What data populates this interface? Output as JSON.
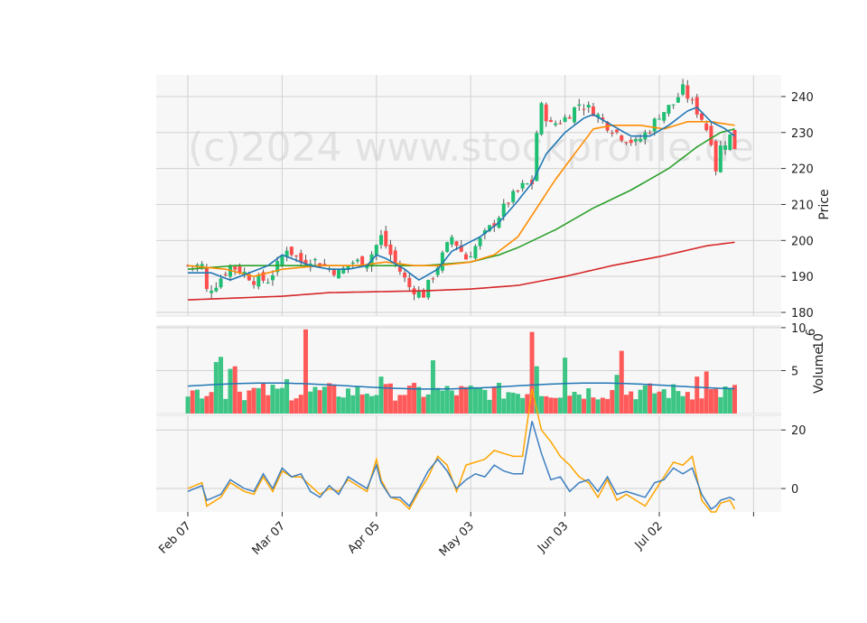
{
  "watermark": "(c)2024 www.stockprofile.de",
  "colors": {
    "panel_bg": "#f7f7f7",
    "grid": "#d2d2d2",
    "up": "#1fbf73",
    "down": "#ff4d4d",
    "vol_up": "#3cc585",
    "vol_down": "#ff5a5a",
    "ma_short": "#1f77b4",
    "ma_mid": "#ff8c00",
    "ma_long": "#2ca02c",
    "ma_200": "#d62728",
    "vol_ma": "#1f77b4",
    "osc_a": "#3d7fc0",
    "osc_b": "#ffa500"
  },
  "chart_data": [
    {
      "type": "candlestick",
      "ylabel": "Price",
      "ylim": [
        179,
        246
      ],
      "yticks": [
        "180",
        "190",
        "200",
        "210",
        "220",
        "230",
        "240"
      ],
      "yticks_values": [
        180,
        190,
        200,
        210,
        220,
        230,
        240
      ],
      "x_tick_labels": [
        "Feb 07",
        "Mar 07",
        "Apr 05",
        "May 03",
        "Jun 03",
        "Jul 02"
      ],
      "x_tick_indices": [
        0,
        20,
        40,
        60,
        80,
        100
      ],
      "n_sessions": 120,
      "anchors_close": [
        [
          0,
          193
        ],
        [
          3,
          193
        ],
        [
          4,
          186
        ],
        [
          6,
          188
        ],
        [
          9,
          193
        ],
        [
          12,
          191
        ],
        [
          14,
          189
        ],
        [
          17,
          189
        ],
        [
          19,
          193
        ],
        [
          21,
          198
        ],
        [
          24,
          194
        ],
        [
          26,
          195
        ],
        [
          29,
          193
        ],
        [
          32,
          191
        ],
        [
          35,
          194
        ],
        [
          38,
          194
        ],
        [
          41,
          201
        ],
        [
          43,
          196
        ],
        [
          47,
          187
        ],
        [
          50,
          185
        ],
        [
          53,
          193
        ],
        [
          56,
          201
        ],
        [
          59,
          195
        ],
        [
          62,
          200
        ],
        [
          65,
          205
        ],
        [
          68,
          211
        ],
        [
          71,
          215
        ],
        [
          73,
          216
        ],
        [
          74,
          230
        ],
        [
          75,
          237
        ],
        [
          77,
          232
        ],
        [
          80,
          234
        ],
        [
          83,
          238
        ],
        [
          86,
          236
        ],
        [
          89,
          232
        ],
        [
          92,
          229
        ],
        [
          95,
          227
        ],
        [
          98,
          231
        ],
        [
          100,
          235
        ],
        [
          103,
          238
        ],
        [
          105,
          242
        ],
        [
          107,
          238
        ],
        [
          109,
          234
        ],
        [
          111,
          228
        ],
        [
          112,
          220
        ],
        [
          113,
          226
        ],
        [
          115,
          229
        ],
        [
          116,
          226
        ]
      ],
      "ma_short_anchors": [
        [
          0,
          191
        ],
        [
          5,
          191
        ],
        [
          9,
          189
        ],
        [
          13,
          191
        ],
        [
          17,
          193
        ],
        [
          20,
          196
        ],
        [
          22,
          195
        ],
        [
          26,
          193
        ],
        [
          30,
          192
        ],
        [
          34,
          192
        ],
        [
          38,
          193
        ],
        [
          40,
          196
        ],
        [
          42,
          195
        ],
        [
          46,
          192
        ],
        [
          49,
          189
        ],
        [
          53,
          192
        ],
        [
          56,
          197
        ],
        [
          59,
          199
        ],
        [
          62,
          201
        ],
        [
          66,
          205
        ],
        [
          70,
          211
        ],
        [
          73,
          216
        ],
        [
          76,
          224
        ],
        [
          80,
          230
        ],
        [
          84,
          234
        ],
        [
          86,
          235
        ],
        [
          90,
          232
        ],
        [
          94,
          229
        ],
        [
          98,
          229
        ],
        [
          102,
          232
        ],
        [
          106,
          236
        ],
        [
          108,
          237
        ],
        [
          111,
          233
        ],
        [
          114,
          231
        ],
        [
          116,
          229
        ]
      ],
      "ma_mid_anchors": [
        [
          0,
          193
        ],
        [
          8,
          192
        ],
        [
          14,
          190
        ],
        [
          20,
          192
        ],
        [
          28,
          193
        ],
        [
          36,
          193
        ],
        [
          42,
          194
        ],
        [
          48,
          193
        ],
        [
          53,
          193
        ],
        [
          60,
          194
        ],
        [
          65,
          196
        ],
        [
          70,
          201
        ],
        [
          74,
          209
        ],
        [
          78,
          217
        ],
        [
          82,
          224
        ],
        [
          86,
          231
        ],
        [
          90,
          232
        ],
        [
          96,
          232
        ],
        [
          101,
          231
        ],
        [
          106,
          233
        ],
        [
          111,
          233
        ],
        [
          116,
          232
        ]
      ],
      "ma_long_anchors": [
        [
          0,
          192
        ],
        [
          10,
          193
        ],
        [
          20,
          193
        ],
        [
          30,
          193
        ],
        [
          40,
          193
        ],
        [
          50,
          193
        ],
        [
          60,
          194
        ],
        [
          66,
          196
        ],
        [
          70,
          198
        ],
        [
          78,
          203
        ],
        [
          86,
          209
        ],
        [
          94,
          214
        ],
        [
          102,
          220
        ],
        [
          108,
          226
        ],
        [
          113,
          230
        ],
        [
          116,
          231
        ]
      ],
      "ma_200_anchors": [
        [
          0,
          183.5
        ],
        [
          20,
          184.5
        ],
        [
          30,
          185.5
        ],
        [
          50,
          186
        ],
        [
          60,
          186.5
        ],
        [
          70,
          187.5
        ],
        [
          80,
          190
        ],
        [
          90,
          193
        ],
        [
          100,
          195.5
        ],
        [
          110,
          198.5
        ],
        [
          116,
          199.5
        ]
      ]
    },
    {
      "type": "bar",
      "name": "volume",
      "ylabel": "Volume",
      "ylabel_multiplier": "10",
      "ylabel_exponent": "6",
      "ylim": [
        0,
        10.2
      ],
      "yticks": [
        "5",
        "10"
      ],
      "yticks_values": [
        5,
        10
      ],
      "spike_values": [
        [
          6,
          6
        ],
        [
          7,
          6.6
        ],
        [
          9,
          5.2
        ],
        [
          10,
          5.5
        ],
        [
          21,
          4
        ],
        [
          25,
          9.8
        ],
        [
          41,
          4.3
        ],
        [
          52,
          6.2
        ],
        [
          73,
          9.5
        ],
        [
          74,
          5.5
        ],
        [
          80,
          6.5
        ],
        [
          92,
          7.3
        ],
        [
          91,
          4.5
        ],
        [
          108,
          4.3
        ],
        [
          110,
          4.9
        ]
      ],
      "base_range": [
        1.5,
        3.6
      ],
      "ma_level": 3.2
    },
    {
      "type": "line",
      "name": "oscillator",
      "ylim": [
        -8,
        25
      ],
      "yticks": [
        "0",
        "20"
      ],
      "yticks_values": [
        0,
        20
      ],
      "series_a_anchors": [
        [
          0,
          -1
        ],
        [
          3,
          1
        ],
        [
          4,
          -4
        ],
        [
          7,
          -2
        ],
        [
          9,
          3
        ],
        [
          12,
          0
        ],
        [
          14,
          -1
        ],
        [
          16,
          5
        ],
        [
          18,
          0
        ],
        [
          20,
          7
        ],
        [
          22,
          4
        ],
        [
          24,
          5
        ],
        [
          26,
          -1
        ],
        [
          28,
          -3
        ],
        [
          30,
          1
        ],
        [
          32,
          -2
        ],
        [
          34,
          4
        ],
        [
          36,
          2
        ],
        [
          38,
          0
        ],
        [
          40,
          8
        ],
        [
          41,
          2
        ],
        [
          43,
          -3
        ],
        [
          45,
          -3
        ],
        [
          47,
          -6
        ],
        [
          49,
          0
        ],
        [
          51,
          6
        ],
        [
          53,
          10
        ],
        [
          55,
          6
        ],
        [
          57,
          0
        ],
        [
          59,
          3
        ],
        [
          61,
          5
        ],
        [
          63,
          4
        ],
        [
          65,
          8
        ],
        [
          67,
          6
        ],
        [
          69,
          5
        ],
        [
          71,
          5
        ],
        [
          73,
          23
        ],
        [
          75,
          12
        ],
        [
          77,
          3
        ],
        [
          79,
          4
        ],
        [
          81,
          -1
        ],
        [
          83,
          2
        ],
        [
          85,
          3
        ],
        [
          87,
          -1
        ],
        [
          89,
          4
        ],
        [
          91,
          -2
        ],
        [
          93,
          -1
        ],
        [
          95,
          -2
        ],
        [
          97,
          -3
        ],
        [
          99,
          2
        ],
        [
          101,
          3
        ],
        [
          103,
          7
        ],
        [
          105,
          5
        ],
        [
          107,
          7
        ],
        [
          109,
          -2
        ],
        [
          111,
          -7
        ],
        [
          112,
          -6
        ],
        [
          113,
          -4
        ],
        [
          115,
          -3
        ],
        [
          116,
          -4
        ]
      ],
      "series_b_anchors": [
        [
          0,
          0
        ],
        [
          3,
          2
        ],
        [
          4,
          -6
        ],
        [
          7,
          -3
        ],
        [
          9,
          2
        ],
        [
          12,
          -1
        ],
        [
          14,
          -2
        ],
        [
          16,
          4
        ],
        [
          18,
          -1
        ],
        [
          20,
          6
        ],
        [
          22,
          4
        ],
        [
          24,
          4
        ],
        [
          26,
          1
        ],
        [
          28,
          -2
        ],
        [
          30,
          0
        ],
        [
          32,
          -1
        ],
        [
          34,
          3
        ],
        [
          36,
          1
        ],
        [
          38,
          -1
        ],
        [
          40,
          10
        ],
        [
          41,
          3
        ],
        [
          43,
          -3
        ],
        [
          45,
          -4
        ],
        [
          47,
          -7
        ],
        [
          49,
          -1
        ],
        [
          51,
          4
        ],
        [
          53,
          11
        ],
        [
          55,
          8
        ],
        [
          57,
          -1
        ],
        [
          59,
          8
        ],
        [
          61,
          9
        ],
        [
          63,
          10
        ],
        [
          65,
          13
        ],
        [
          67,
          12
        ],
        [
          69,
          11
        ],
        [
          71,
          11
        ],
        [
          73,
          34
        ],
        [
          75,
          20
        ],
        [
          77,
          16
        ],
        [
          79,
          11
        ],
        [
          81,
          8
        ],
        [
          83,
          4
        ],
        [
          85,
          2
        ],
        [
          87,
          -3
        ],
        [
          89,
          3
        ],
        [
          91,
          -4
        ],
        [
          93,
          -2
        ],
        [
          95,
          -4
        ],
        [
          97,
          -6
        ],
        [
          99,
          -1
        ],
        [
          101,
          4
        ],
        [
          103,
          9
        ],
        [
          105,
          8
        ],
        [
          107,
          11
        ],
        [
          109,
          -4
        ],
        [
          111,
          -8
        ],
        [
          112,
          -8
        ],
        [
          113,
          -5
        ],
        [
          115,
          -4
        ],
        [
          116,
          -7
        ]
      ]
    }
  ]
}
